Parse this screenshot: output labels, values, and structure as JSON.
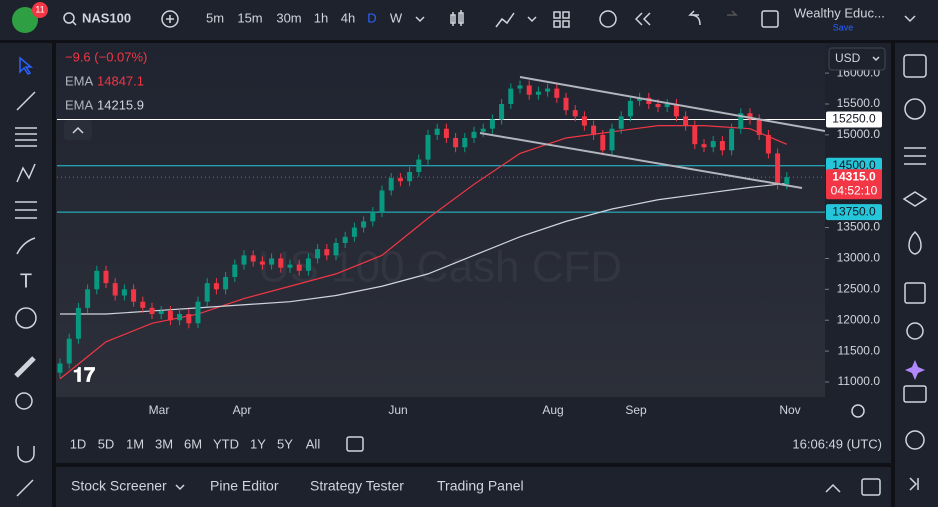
{
  "header": {
    "badge": "11",
    "symbol": "NAS100",
    "intervals": [
      "5m",
      "15m",
      "30m",
      "1h",
      "4h",
      "D",
      "W"
    ],
    "account": "Wealthy Educ...",
    "save": "Save"
  },
  "legend": {
    "change": "−9.6 (−0.07%)",
    "indicators": [
      {
        "name": "EMA",
        "value": "14847.1"
      },
      {
        "name": "EMA",
        "value": "14215.9"
      }
    ]
  },
  "chart": {
    "type": "candlestick",
    "watermark": "US 100 Cash CFD",
    "currency": "USD",
    "closes": [
      11300,
      11700,
      12200,
      12500,
      12800,
      12600,
      12400,
      12500,
      12300,
      12200,
      12100,
      12150,
      12000,
      12100,
      11950,
      12300,
      12600,
      12500,
      12700,
      12900,
      13050,
      12950,
      12900,
      13000,
      12850,
      12900,
      12800,
      13000,
      13150,
      13050,
      13250,
      13350,
      13500,
      13600,
      13750,
      14100,
      14300,
      14250,
      14400,
      14600,
      15000,
      15100,
      14950,
      14800,
      14950,
      15050,
      15100,
      15250,
      15500,
      15750,
      15800,
      15650,
      15700,
      15750,
      15600,
      15400,
      15300,
      15150,
      15000,
      14750,
      15100,
      15300,
      15550,
      15600,
      15500,
      15450,
      15500,
      15300,
      15150,
      14850,
      14800,
      14900,
      14750,
      15100,
      15350,
      15250,
      15000,
      14700,
      14200,
      14315
    ],
    "up_color": "#089981",
    "down_color": "#f23645",
    "lines": [
      {
        "color": "#f23645",
        "x": [
          0,
          5,
          10,
          15,
          20,
          25,
          30,
          35,
          40,
          45,
          50,
          55,
          60,
          65,
          70,
          75,
          79
        ],
        "values": [
          11050,
          11650,
          11950,
          12100,
          12350,
          12550,
          12750,
          13050,
          13650,
          14200,
          14700,
          14950,
          15050,
          15150,
          15150,
          15100,
          14847.1
        ]
      },
      {
        "color": "#d1d4dc",
        "x": [
          0,
          5,
          10,
          15,
          20,
          25,
          30,
          35,
          40,
          45,
          50,
          55,
          60,
          65,
          70,
          75,
          79
        ],
        "values": [
          12100,
          12100,
          12150,
          12200,
          12250,
          12300,
          12400,
          12550,
          12750,
          13050,
          13350,
          13600,
          13800,
          13950,
          14050,
          14150,
          14215.9
        ]
      }
    ],
    "ylim": [
      10757,
      16455
    ],
    "yticks": [
      {
        "value": 11000,
        "label": "11000.0"
      },
      {
        "value": 11500,
        "label": "11500.0"
      },
      {
        "value": 12000,
        "label": "12000.0"
      },
      {
        "value": 12500,
        "label": "12500.0"
      },
      {
        "value": 13000,
        "label": "13000.0"
      },
      {
        "value": 13500,
        "label": "13500.0"
      },
      {
        "value": 15000,
        "label": "15000.0"
      },
      {
        "value": 15500,
        "label": "15500.0"
      },
      {
        "value": 16000,
        "label": "16000.0"
      }
    ],
    "levels": [
      {
        "value": 15250,
        "label": "15250.0",
        "color": "#ffffff"
      },
      {
        "value": 14500,
        "label": "14500.0",
        "color": "#26c6da"
      },
      {
        "value": 13750,
        "label": "13750.0",
        "color": "#26c6da"
      }
    ],
    "price": {
      "value": 14315,
      "label": "14315.0",
      "countdown": "04:52:10",
      "color": "#f23645"
    },
    "months": [
      "Mar",
      "Apr",
      "Jun",
      "Aug",
      "Sep",
      "Nov"
    ]
  },
  "footer": {
    "ranges": [
      "1D",
      "5D",
      "1M",
      "3M",
      "6M",
      "YTD",
      "1Y",
      "5Y",
      "All"
    ],
    "time": "16:06:49 (UTC)",
    "tabs": [
      "Stock Screener",
      "Pine Editor",
      "Strategy Tester",
      "Trading Panel"
    ]
  }
}
